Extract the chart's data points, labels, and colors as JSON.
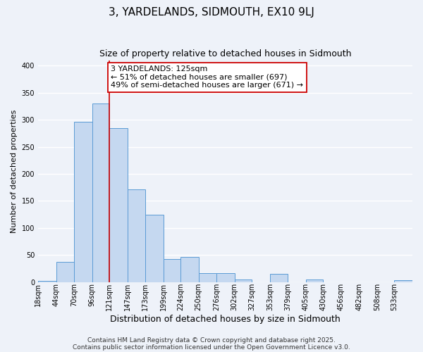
{
  "title": "3, YARDELANDS, SIDMOUTH, EX10 9LJ",
  "subtitle": "Size of property relative to detached houses in Sidmouth",
  "xlabel": "Distribution of detached houses by size in Sidmouth",
  "ylabel": "Number of detached properties",
  "bar_labels": [
    "18sqm",
    "44sqm",
    "70sqm",
    "96sqm",
    "121sqm",
    "147sqm",
    "173sqm",
    "199sqm",
    "224sqm",
    "250sqm",
    "276sqm",
    "302sqm",
    "327sqm",
    "353sqm",
    "379sqm",
    "405sqm",
    "430sqm",
    "456sqm",
    "482sqm",
    "508sqm",
    "533sqm"
  ],
  "bar_values": [
    2,
    37,
    296,
    330,
    284,
    171,
    125,
    43,
    46,
    16,
    16,
    5,
    0,
    15,
    0,
    5,
    0,
    0,
    0,
    0,
    3
  ],
  "bar_edges": [
    18,
    44,
    70,
    96,
    121,
    147,
    173,
    199,
    224,
    250,
    276,
    302,
    327,
    353,
    379,
    405,
    430,
    456,
    482,
    508,
    533,
    559
  ],
  "bar_color": "#c5d8f0",
  "bar_edge_color": "#5b9bd5",
  "vline_x": 121,
  "vline_color": "#cc0000",
  "annotation_text": "3 YARDELANDS: 125sqm\n← 51% of detached houses are smaller (697)\n49% of semi-detached houses are larger (671) →",
  "annotation_box_color": "#ffffff",
  "annotation_box_edge": "#cc0000",
  "ylim": [
    0,
    410
  ],
  "yticks": [
    0,
    50,
    100,
    150,
    200,
    250,
    300,
    350,
    400
  ],
  "background_color": "#eef2f9",
  "grid_color": "#ffffff",
  "footer1": "Contains HM Land Registry data © Crown copyright and database right 2025.",
  "footer2": "Contains public sector information licensed under the Open Government Licence v3.0.",
  "title_fontsize": 11,
  "subtitle_fontsize": 9,
  "xlabel_fontsize": 9,
  "ylabel_fontsize": 8,
  "tick_fontsize": 7,
  "annotation_fontsize": 8,
  "footer_fontsize": 6.5
}
